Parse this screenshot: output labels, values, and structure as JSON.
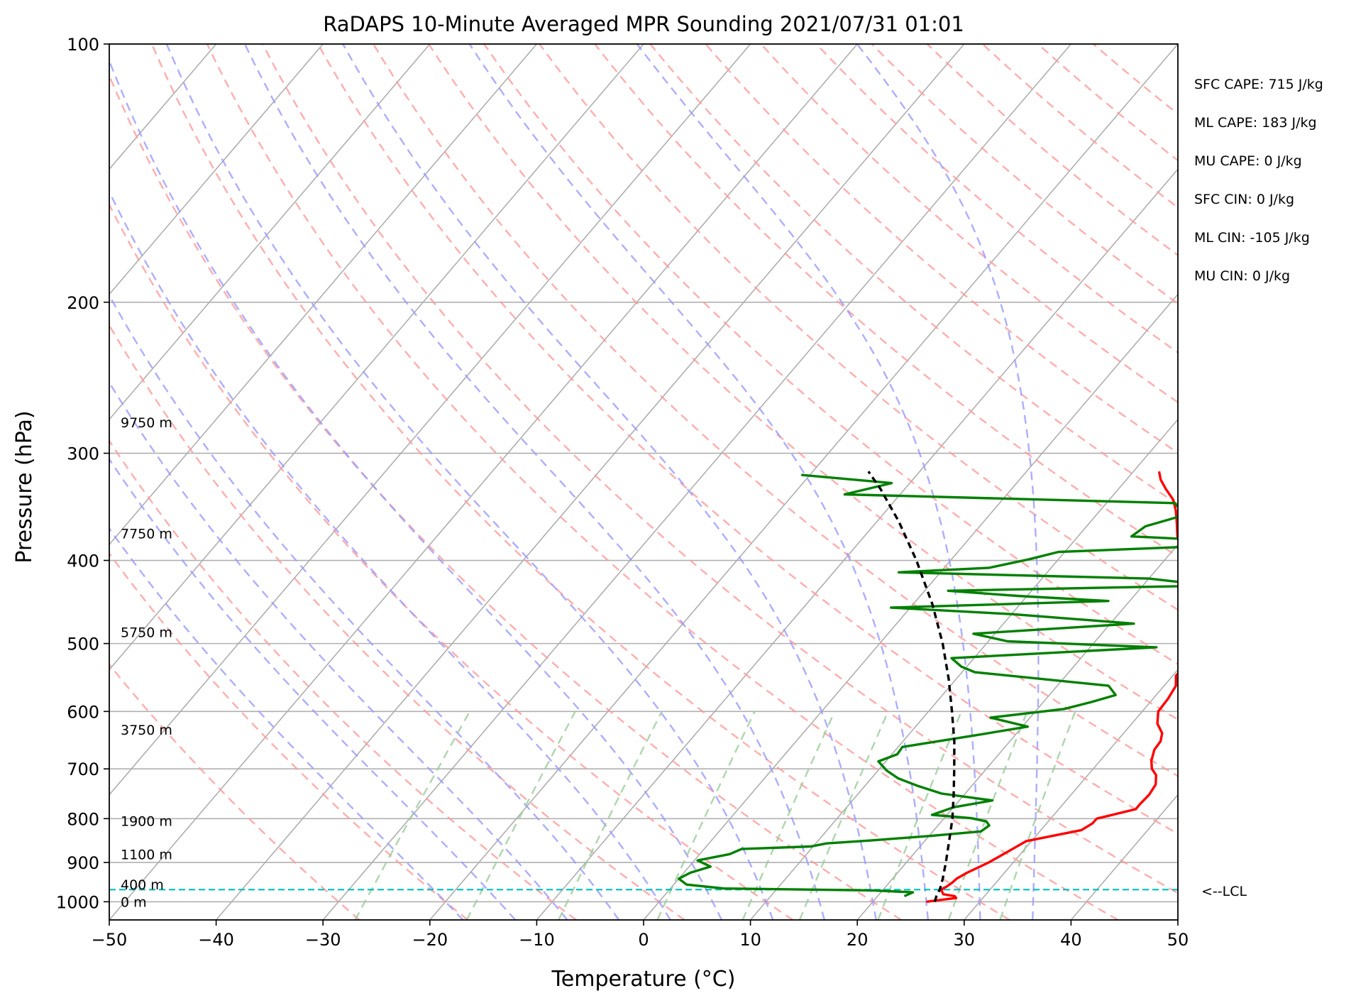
{
  "chart_data": {
    "type": "line",
    "title": "RaDAPS 10-Minute Averaged MPR Sounding 2021/07/31 01:01",
    "xlabel": "Temperature (°C)",
    "ylabel": "Pressure (hPa)",
    "xlim": [
      -50,
      50
    ],
    "ylim": [
      1050,
      100
    ],
    "y_scale": "log",
    "grid": true,
    "x_ticks": [
      "−50",
      "−40",
      "−30",
      "−20",
      "−10",
      "0",
      "10",
      "20",
      "30",
      "40",
      "50"
    ],
    "y_ticks": [
      {
        "p": 100,
        "label": "100"
      },
      {
        "p": 200,
        "label": "200"
      },
      {
        "p": 300,
        "label": "300"
      },
      {
        "p": 400,
        "label": "400"
      },
      {
        "p": 500,
        "label": "500"
      },
      {
        "p": 600,
        "label": "600"
      },
      {
        "p": 700,
        "label": "700"
      },
      {
        "p": 800,
        "label": "800"
      },
      {
        "p": 900,
        "label": "900"
      },
      {
        "p": 1000,
        "label": "1000"
      }
    ],
    "height_labels": [
      {
        "p": 1000,
        "label": "0 m"
      },
      {
        "p": 955,
        "label": "400 m"
      },
      {
        "p": 880,
        "label": "1100 m"
      },
      {
        "p": 805,
        "label": "1900 m"
      },
      {
        "p": 630,
        "label": "3750 m"
      },
      {
        "p": 485,
        "label": "5750 m"
      },
      {
        "p": 372,
        "label": "7750 m"
      },
      {
        "p": 276,
        "label": "9750 m"
      }
    ],
    "lcl": {
      "p": 968,
      "label": "<--LCL"
    },
    "colors": {
      "temperature": "#ff0000",
      "dewpoint": "#008000",
      "parcel": "#000000",
      "isotherm": "#aaaaaa",
      "dry_adiabat": "#ff9999",
      "moist_adiabat": "#9999ff",
      "mixing_ratio": "#99cc99",
      "lcl": "#00bfbf"
    },
    "series": [
      {
        "name": "Temperature",
        "points": [
          [
            1000,
            25
          ],
          [
            990,
            27.5
          ],
          [
            985,
            27.2
          ],
          [
            980,
            26
          ],
          [
            970,
            25.5
          ],
          [
            965,
            25.5
          ],
          [
            960,
            25.7
          ],
          [
            950,
            25.9
          ],
          [
            940,
            26.0
          ],
          [
            925,
            26.5
          ],
          [
            900,
            27.7
          ],
          [
            875,
            28.6
          ],
          [
            850,
            29.5
          ],
          [
            825,
            33.8
          ],
          [
            810,
            34.3
          ],
          [
            800,
            34.3
          ],
          [
            780,
            37.2
          ],
          [
            770,
            37.2
          ],
          [
            750,
            37.3
          ],
          [
            730,
            37.1
          ],
          [
            712,
            36.4
          ],
          [
            700,
            35.5
          ],
          [
            685,
            34.8
          ],
          [
            665,
            34.2
          ],
          [
            650,
            34.1
          ],
          [
            636,
            33.6
          ],
          [
            620,
            32.4
          ],
          [
            600,
            31.5
          ],
          [
            580,
            31.4
          ],
          [
            560,
            31.1
          ],
          [
            545,
            30.3
          ],
          [
            530,
            30.4
          ],
          [
            515,
            29.5
          ],
          [
            500,
            28.4
          ],
          [
            487,
            28.0
          ],
          [
            475,
            27.6
          ],
          [
            463,
            26.7
          ],
          [
            445,
            26.0
          ],
          [
            430,
            25.2
          ],
          [
            418,
            24.0
          ],
          [
            405,
            22.5
          ],
          [
            390,
            20.8
          ],
          [
            375,
            19.3
          ],
          [
            362,
            18.2
          ],
          [
            350,
            17.1
          ],
          [
            340,
            16.0
          ],
          [
            330,
            14.4
          ],
          [
            322,
            13.2
          ],
          [
            315,
            12.4
          ]
        ]
      },
      {
        "name": "Dewpoint",
        "points": [
          [
            985,
            22.5
          ],
          [
            975,
            23.0
          ],
          [
            970,
            19.0
          ],
          [
            965,
            5.0
          ],
          [
            955,
            1.2
          ],
          [
            940,
            0.0
          ],
          [
            925,
            0.6
          ],
          [
            910,
            2.0
          ],
          [
            895,
            0.3
          ],
          [
            880,
            2.8
          ],
          [
            868,
            3.5
          ],
          [
            862,
            9.8
          ],
          [
            855,
            11.0
          ],
          [
            848,
            15.0
          ],
          [
            838,
            20.2
          ],
          [
            828,
            24.5
          ],
          [
            815,
            24.8
          ],
          [
            806,
            24.2
          ],
          [
            799,
            22.5
          ],
          [
            792,
            18.6
          ],
          [
            776,
            20.0
          ],
          [
            762,
            23.1
          ],
          [
            748,
            17.8
          ],
          [
            733,
            15.0
          ],
          [
            718,
            12.5
          ],
          [
            703,
            10.8
          ],
          [
            686,
            9.3
          ],
          [
            673,
            10.5
          ],
          [
            660,
            10.4
          ],
          [
            640,
            16.2
          ],
          [
            625,
            20.5
          ],
          [
            610,
            16.3
          ],
          [
            596,
            22.5
          ],
          [
            585,
            24.5
          ],
          [
            574,
            26.2
          ],
          [
            560,
            24.8
          ],
          [
            540,
            11.2
          ],
          [
            532,
            9.5
          ],
          [
            520,
            7.9
          ],
          [
            505,
            26.2
          ],
          [
            497,
            11.8
          ],
          [
            487,
            8.0
          ],
          [
            474,
            22.2
          ],
          [
            462,
            10.0
          ],
          [
            454,
            -1.8
          ],
          [
            446,
            18.0
          ],
          [
            440,
            9.1
          ],
          [
            434,
            2.2
          ],
          [
            428,
            26.4
          ],
          [
            420,
            20.0
          ],
          [
            413,
            -3.9
          ],
          [
            408,
            4.2
          ],
          [
            399,
            7.2
          ],
          [
            391,
            9.4
          ],
          [
            382,
            29.0
          ],
          [
            375,
            15.0
          ],
          [
            365,
            15.5
          ],
          [
            354,
            18.3
          ],
          [
            343,
            16.4
          ],
          [
            335,
            -15.2
          ],
          [
            325,
            -11.7
          ],
          [
            318,
            -20.8
          ]
        ]
      },
      {
        "name": "Parcel",
        "points": [
          [
            1000,
            25.8
          ],
          [
            990,
            25.6
          ],
          [
            980,
            25.4
          ],
          [
            968,
            25.3
          ],
          [
            940,
            24.7
          ],
          [
            900,
            23.7
          ],
          [
            850,
            22.3
          ],
          [
            800,
            20.8
          ],
          [
            750,
            19.0
          ],
          [
            700,
            17.0
          ],
          [
            650,
            14.8
          ],
          [
            600,
            12.2
          ],
          [
            550,
            9.3
          ],
          [
            500,
            5.9
          ],
          [
            450,
            1.8
          ],
          [
            400,
            -3.2
          ],
          [
            360,
            -8.0
          ],
          [
            330,
            -12.3
          ],
          [
            315,
            -14.8
          ]
        ]
      }
    ]
  },
  "stats": [
    "SFC CAPE: 715 J/kg",
    "ML CAPE: 183 J/kg",
    "MU CAPE: 0 J/kg",
    "SFC CIN: 0 J/kg",
    "ML CIN: -105 J/kg",
    "MU CIN: 0 J/kg"
  ]
}
